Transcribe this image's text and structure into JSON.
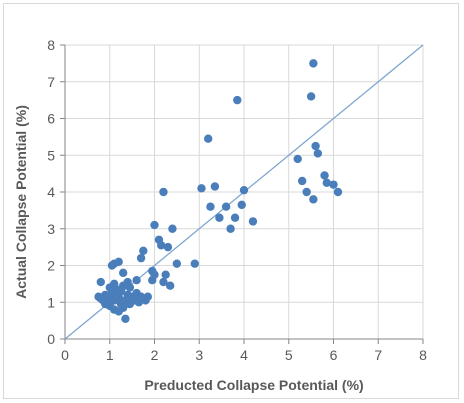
{
  "chart_data": {
    "type": "scatter",
    "title": "",
    "xlabel": "Preducted Collapse Potential (%)",
    "ylabel": "Actual Collapse Potential (%)",
    "xlim": [
      0,
      8
    ],
    "ylim": [
      0,
      8
    ],
    "xticks": [
      "0",
      "1",
      "2",
      "3",
      "4",
      "5",
      "6",
      "7",
      "8"
    ],
    "yticks": [
      "0",
      "1",
      "2",
      "3",
      "4",
      "5",
      "6",
      "7",
      "8"
    ],
    "grid": true,
    "legend": "none",
    "reference_line": {
      "from": [
        0,
        0
      ],
      "to": [
        8,
        8
      ],
      "color": "#7ea6d2"
    },
    "marker_color": "#4a7ebb",
    "gridline_color": "#d9d9d9",
    "points": [
      [
        0.75,
        1.15
      ],
      [
        0.8,
        1.1
      ],
      [
        0.85,
        1.05
      ],
      [
        0.9,
        1.2
      ],
      [
        0.9,
        0.95
      ],
      [
        0.95,
        1.0
      ],
      [
        1.0,
        1.1
      ],
      [
        1.0,
        0.9
      ],
      [
        1.05,
        1.25
      ],
      [
        1.1,
        1.05
      ],
      [
        1.1,
        0.8
      ],
      [
        1.15,
        1.35
      ],
      [
        1.2,
        1.15
      ],
      [
        1.2,
        0.75
      ],
      [
        1.25,
        0.95
      ],
      [
        1.3,
        1.45
      ],
      [
        1.3,
        0.85
      ],
      [
        1.35,
        1.05
      ],
      [
        1.35,
        0.55
      ],
      [
        1.4,
        1.2
      ],
      [
        1.45,
        1.4
      ],
      [
        1.45,
        0.95
      ],
      [
        1.5,
        1.15
      ],
      [
        1.55,
        1.05
      ],
      [
        1.6,
        1.25
      ],
      [
        1.65,
        1.0
      ],
      [
        1.7,
        1.15
      ],
      [
        1.75,
        1.1
      ],
      [
        1.8,
        1.05
      ],
      [
        1.0,
        1.4
      ],
      [
        1.1,
        1.5
      ],
      [
        1.25,
        1.3
      ],
      [
        0.8,
        1.55
      ],
      [
        1.05,
        2.0
      ],
      [
        1.1,
        2.05
      ],
      [
        1.2,
        2.1
      ],
      [
        1.3,
        1.8
      ],
      [
        1.4,
        1.55
      ],
      [
        1.6,
        1.6
      ],
      [
        1.7,
        2.2
      ],
      [
        1.75,
        2.4
      ],
      [
        1.85,
        1.15
      ],
      [
        1.95,
        1.85
      ],
      [
        1.95,
        1.6
      ],
      [
        2.0,
        1.75
      ],
      [
        2.0,
        3.1
      ],
      [
        2.1,
        2.7
      ],
      [
        2.15,
        2.55
      ],
      [
        2.2,
        1.55
      ],
      [
        2.25,
        1.75
      ],
      [
        2.3,
        2.5
      ],
      [
        2.35,
        1.45
      ],
      [
        2.4,
        3.0
      ],
      [
        2.2,
        4.0
      ],
      [
        2.5,
        2.05
      ],
      [
        2.9,
        2.05
      ],
      [
        3.05,
        4.1
      ],
      [
        3.2,
        5.45
      ],
      [
        3.25,
        3.6
      ],
      [
        3.35,
        4.15
      ],
      [
        3.45,
        3.3
      ],
      [
        3.6,
        3.6
      ],
      [
        3.7,
        3.0
      ],
      [
        3.8,
        3.3
      ],
      [
        3.85,
        6.5
      ],
      [
        3.95,
        3.65
      ],
      [
        4.0,
        4.05
      ],
      [
        4.2,
        3.2
      ],
      [
        5.2,
        4.9
      ],
      [
        5.3,
        4.3
      ],
      [
        5.4,
        4.0
      ],
      [
        5.5,
        6.6
      ],
      [
        5.55,
        7.5
      ],
      [
        5.55,
        3.8
      ],
      [
        5.6,
        5.25
      ],
      [
        5.65,
        5.05
      ],
      [
        5.8,
        4.45
      ],
      [
        5.85,
        4.25
      ],
      [
        6.0,
        4.2
      ],
      [
        6.1,
        4.0
      ]
    ]
  }
}
